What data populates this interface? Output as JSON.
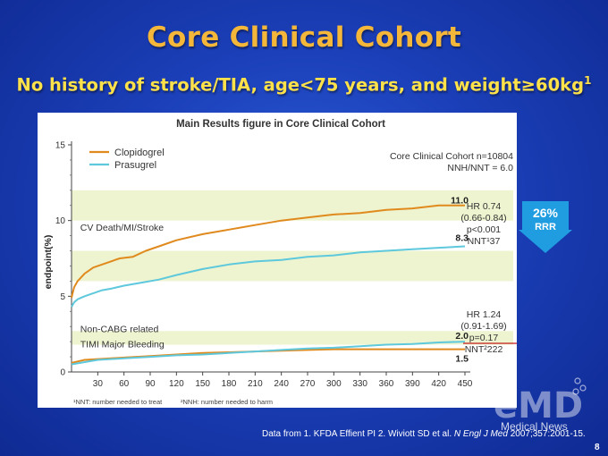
{
  "slide": {
    "title": "Core Clinical Cohort",
    "subtitle_main": "No history of stroke/TIA, age<75 years, and weight≥60kg",
    "subtitle_sup": "1",
    "footer_pre": "Data from 1. KFDA Effient PI  2. Wiviott SD et al. ",
    "footer_journal": "N Engl J Med",
    "footer_post": " 2007;357:2001-15.",
    "page_number": "8",
    "logo_text": "Medical News",
    "arrow_pct": "26%",
    "arrow_label": "RRR",
    "colors": {
      "clopidogrel": "#e08a1e",
      "prasugrel": "#5ec8dc",
      "band": "#eef4cf",
      "arrow": "#1f9de0",
      "title": "#f5b73a",
      "subtitle": "#ffe14a"
    }
  },
  "chart_data": {
    "type": "line",
    "title": "Main Results figure in Core Clinical Cohort",
    "ylabel": "endpoint(%)",
    "xlabel": "",
    "xlim": [
      0,
      450
    ],
    "ylim": [
      0,
      15
    ],
    "x_ticks": [
      30,
      60,
      90,
      120,
      150,
      180,
      210,
      240,
      270,
      300,
      330,
      360,
      390,
      420,
      450
    ],
    "y_ticks": [
      0,
      5,
      10,
      15
    ],
    "legend": [
      "Clopidogrel",
      "Prasugrel"
    ],
    "legend_position": "top-left",
    "cohort_text": [
      "Core Clinical Cohort n=10804",
      "NNH/NNT = 6.0"
    ],
    "series": [
      {
        "name": "Clopidogrel",
        "endpoint": "CV Death/MI/Stroke",
        "x": [
          0,
          3,
          7,
          15,
          25,
          35,
          45,
          55,
          70,
          85,
          100,
          120,
          150,
          180,
          210,
          240,
          270,
          300,
          330,
          360,
          390,
          420,
          450
        ],
        "y": [
          4.9,
          5.6,
          6.0,
          6.5,
          6.9,
          7.1,
          7.3,
          7.5,
          7.6,
          8.0,
          8.3,
          8.7,
          9.1,
          9.4,
          9.7,
          10.0,
          10.2,
          10.4,
          10.5,
          10.7,
          10.8,
          11.0,
          11.0
        ]
      },
      {
        "name": "Prasugrel",
        "endpoint": "CV Death/MI/Stroke",
        "x": [
          0,
          3,
          7,
          15,
          25,
          35,
          45,
          60,
          80,
          100,
          120,
          150,
          180,
          210,
          240,
          270,
          300,
          330,
          360,
          390,
          420,
          450
        ],
        "y": [
          4.3,
          4.6,
          4.8,
          5.0,
          5.2,
          5.4,
          5.5,
          5.7,
          5.9,
          6.1,
          6.4,
          6.8,
          7.1,
          7.3,
          7.4,
          7.6,
          7.7,
          7.9,
          8.0,
          8.1,
          8.2,
          8.3
        ]
      },
      {
        "name": "Clopidogrel",
        "endpoint": "Non-CABG related TIMI Major Bleeding",
        "x": [
          0,
          15,
          30,
          60,
          90,
          120,
          150,
          180,
          210,
          240,
          270,
          300,
          330,
          360,
          390,
          420,
          450
        ],
        "y": [
          0.6,
          0.8,
          0.85,
          0.95,
          1.05,
          1.15,
          1.25,
          1.3,
          1.35,
          1.4,
          1.45,
          1.5,
          1.5,
          1.5,
          1.5,
          1.5,
          1.5
        ]
      },
      {
        "name": "Prasugrel",
        "endpoint": "Non-CABG related TIMI Major Bleeding",
        "x": [
          0,
          15,
          30,
          60,
          90,
          120,
          150,
          180,
          210,
          240,
          270,
          300,
          330,
          360,
          390,
          420,
          450
        ],
        "y": [
          0.5,
          0.65,
          0.8,
          0.9,
          1.0,
          1.1,
          1.15,
          1.25,
          1.35,
          1.45,
          1.55,
          1.6,
          1.7,
          1.8,
          1.85,
          1.95,
          2.0
        ]
      }
    ],
    "bands": [
      [
        1.8,
        2.7
      ],
      [
        6.0,
        8.0
      ],
      [
        10.0,
        12.0
      ]
    ],
    "annotations": [
      {
        "text": "CV Death/MI/Stroke",
        "x": 10,
        "y": 9.5
      },
      {
        "text": "Non-CABG related",
        "x": 10,
        "y": 2.8
      },
      {
        "text": "TIMI Major Bleeding",
        "x": 10,
        "y": 1.8
      }
    ],
    "end_labels": [
      {
        "text": "11.0",
        "y": 11.0
      },
      {
        "text": "8.3",
        "y": 8.3
      },
      {
        "text": "2.0",
        "y": 2.0
      },
      {
        "text": "1.5",
        "y": 1.5
      }
    ],
    "stats_efficacy": [
      "HR 0.74",
      "(0.66-0.84)",
      "p<0.001",
      "NNT¹37"
    ],
    "stats_bleeding": [
      "HR 1.24",
      "(0.91-1.69)",
      "p=0.17",
      "NNT²222"
    ],
    "footnotes": [
      "¹NNT: number needed to treat",
      "²NNH: number needed to harm"
    ]
  }
}
